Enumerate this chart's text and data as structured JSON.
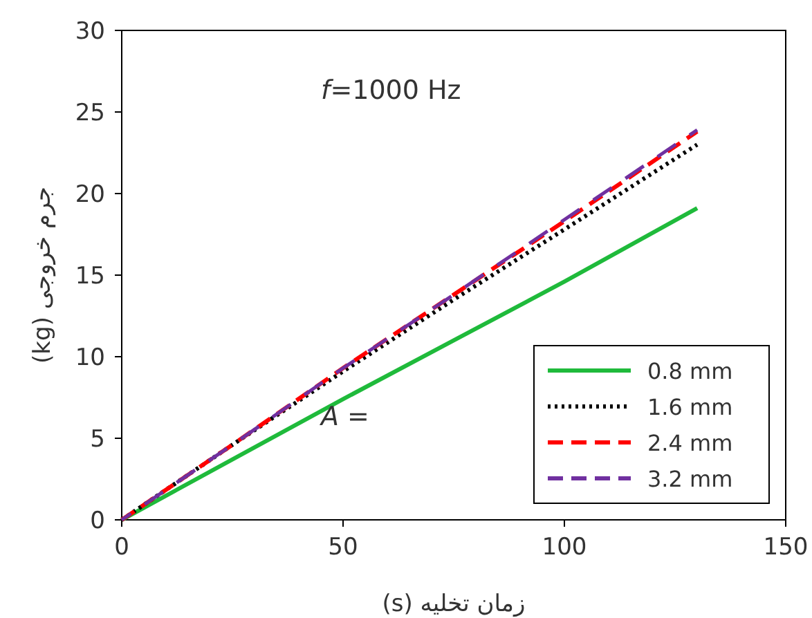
{
  "chart_data": {
    "type": "line",
    "xlabel": "زمان تخلیه (s)",
    "ylabel": "جرم خروجی (kg)",
    "x": [
      0,
      25,
      50,
      75,
      100,
      130
    ],
    "xlim": [
      0,
      150
    ],
    "xticks": [
      0,
      50,
      100,
      150
    ],
    "ylim": [
      0,
      30
    ],
    "yticks": [
      0,
      5,
      10,
      15,
      20,
      25,
      30
    ],
    "grid": false,
    "legend": "bottom right",
    "marker": "none",
    "annotations": [
      "f=1000 Hz",
      "A ="
    ],
    "series": [
      {
        "name": "0.8 mm",
        "color": "#1fba3b",
        "line_style": "solid",
        "values": [
          0,
          3.7,
          7.4,
          11.0,
          14.6,
          19.1
        ]
      },
      {
        "name": "1.6 mm",
        "color": "#000000",
        "line_style": "dotted",
        "values": [
          0,
          4.6,
          9.1,
          13.5,
          17.8,
          23.0
        ]
      },
      {
        "name": "2.4 mm",
        "color": "#ff0000",
        "line_style": "dashed",
        "values": [
          0,
          4.6,
          9.3,
          13.8,
          18.3,
          23.8
        ]
      },
      {
        "name": "3.2 mm",
        "color": "#7030a0",
        "line_style": "dashed",
        "values": [
          0,
          4.6,
          9.3,
          13.8,
          18.4,
          23.9
        ]
      }
    ]
  }
}
